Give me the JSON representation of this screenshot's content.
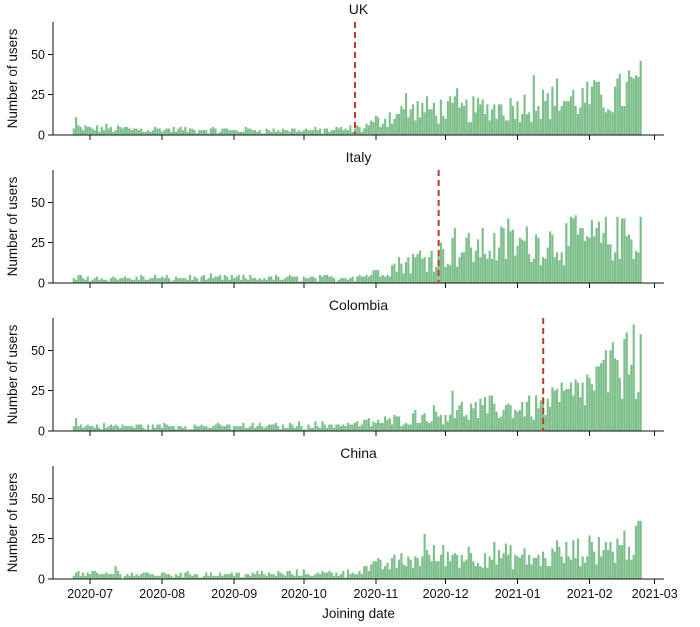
{
  "chart_data": {
    "type": "bar",
    "xlabel": "Joining date",
    "ylabel": "Number of users",
    "x_ticks": [
      "2020-07",
      "2020-08",
      "2020-09",
      "2020-10",
      "2020-11",
      "2020-12",
      "2021-01",
      "2021-02",
      "2021-03"
    ],
    "x_range": [
      "2020-06-15",
      "2021-03-05"
    ],
    "data_range": [
      "2020-06-24",
      "2021-02-23"
    ],
    "ylim": [
      0,
      70
    ],
    "y_ticks": [
      0,
      25,
      50
    ],
    "bar_color": "#7cbf8a",
    "marker_color": "#c0392b",
    "panels": [
      {
        "title": "UK",
        "marker_date": "2020-10-23",
        "anchors": [
          [
            "2020-06-24",
            4
          ],
          [
            "2020-07-15",
            4
          ],
          [
            "2020-08-15",
            3
          ],
          [
            "2020-09-15",
            3
          ],
          [
            "2020-10-15",
            3
          ],
          [
            "2020-10-25",
            4
          ],
          [
            "2020-11-08",
            12
          ],
          [
            "2020-11-20",
            16
          ],
          [
            "2020-12-10",
            15
          ],
          [
            "2021-01-01",
            18
          ],
          [
            "2021-01-20",
            21
          ],
          [
            "2021-02-10",
            23
          ],
          [
            "2021-02-23",
            30
          ]
        ],
        "peaks": [
          [
            "2020-06-25",
            11
          ],
          [
            "2020-11-14",
            26
          ],
          [
            "2020-12-06",
            29
          ],
          [
            "2021-01-08",
            37
          ],
          [
            "2021-01-18",
            35
          ],
          [
            "2021-02-04",
            33
          ],
          [
            "2021-02-18",
            40
          ],
          [
            "2021-02-23",
            46
          ]
        ]
      },
      {
        "title": "Italy",
        "marker_date": "2020-11-28",
        "anchors": [
          [
            "2020-06-24",
            3
          ],
          [
            "2020-08-15",
            3
          ],
          [
            "2020-10-15",
            3
          ],
          [
            "2020-10-28",
            5
          ],
          [
            "2020-11-10",
            11
          ],
          [
            "2020-11-25",
            17
          ],
          [
            "2020-12-15",
            22
          ],
          [
            "2021-01-10",
            25
          ],
          [
            "2021-02-23",
            28
          ]
        ],
        "peaks": [
          [
            "2020-12-05",
            34
          ],
          [
            "2020-12-28",
            40
          ],
          [
            "2021-01-26",
            42
          ],
          [
            "2021-02-15",
            40
          ],
          [
            "2021-02-23",
            41
          ]
        ]
      },
      {
        "title": "Colombia",
        "marker_date": "2021-01-12",
        "anchors": [
          [
            "2020-06-24",
            3
          ],
          [
            "2020-09-15",
            3
          ],
          [
            "2020-10-20",
            4
          ],
          [
            "2020-11-05",
            6
          ],
          [
            "2020-11-25",
            10
          ],
          [
            "2020-12-20",
            14
          ],
          [
            "2021-01-10",
            15
          ],
          [
            "2021-01-25",
            22
          ],
          [
            "2021-02-10",
            35
          ],
          [
            "2021-02-23",
            45
          ]
        ],
        "peaks": [
          [
            "2020-06-25",
            8
          ],
          [
            "2020-12-04",
            25
          ],
          [
            "2021-01-20",
            30
          ],
          [
            "2021-02-08",
            50
          ],
          [
            "2021-02-16",
            57
          ],
          [
            "2021-02-20",
            66
          ],
          [
            "2021-02-23",
            60
          ]
        ]
      },
      {
        "title": "China",
        "marker_date": null,
        "anchors": [
          [
            "2020-06-24",
            3
          ],
          [
            "2020-09-15",
            3
          ],
          [
            "2020-10-20",
            4
          ],
          [
            "2020-11-05",
            9
          ],
          [
            "2020-11-25",
            14
          ],
          [
            "2020-12-20",
            15
          ],
          [
            "2021-01-10",
            12
          ],
          [
            "2021-01-25",
            16
          ],
          [
            "2021-02-10",
            19
          ],
          [
            "2021-02-23",
            24
          ]
        ],
        "peaks": [
          [
            "2020-07-12",
            8
          ],
          [
            "2020-11-22",
            28
          ],
          [
            "2021-01-18",
            24
          ],
          [
            "2021-02-05",
            26
          ],
          [
            "2021-02-21",
            33
          ]
        ]
      }
    ]
  }
}
